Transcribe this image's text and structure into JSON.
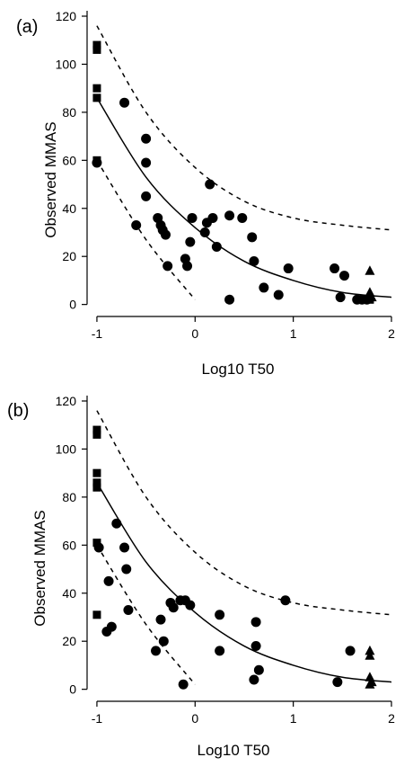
{
  "chart_data": [
    {
      "type": "scatter",
      "panel_label": "(a)",
      "xlabel": "Log10 T50",
      "ylabel": "Observed MMAS",
      "xlim": [
        -1.1,
        2.0
      ],
      "ylim": [
        -5,
        120
      ],
      "xticks": [
        "-1",
        "0",
        "1",
        "2"
      ],
      "yticks": [
        "0",
        "20",
        "40",
        "60",
        "80",
        "100",
        "120"
      ],
      "grid": false,
      "legend": "none",
      "series": [
        {
          "marker": "square",
          "points": [
            [
              -1.0,
              108
            ],
            [
              -1.0,
              106
            ],
            [
              -1.0,
              90
            ],
            [
              -1.0,
              86
            ],
            [
              -1.0,
              60
            ],
            [
              1.78,
              2
            ]
          ]
        },
        {
          "marker": "circle",
          "points": [
            [
              -1.0,
              59
            ],
            [
              -0.72,
              84
            ],
            [
              -0.6,
              33
            ],
            [
              -0.5,
              69
            ],
            [
              -0.5,
              59
            ],
            [
              -0.5,
              45
            ],
            [
              -0.38,
              36
            ],
            [
              -0.35,
              33
            ],
            [
              -0.33,
              31
            ],
            [
              -0.3,
              29
            ],
            [
              -0.28,
              16
            ],
            [
              -0.1,
              19
            ],
            [
              -0.08,
              16
            ],
            [
              -0.05,
              26
            ],
            [
              -0.03,
              36
            ],
            [
              0.1,
              30
            ],
            [
              0.12,
              34
            ],
            [
              0.15,
              50
            ],
            [
              0.18,
              36
            ],
            [
              0.22,
              24
            ],
            [
              0.35,
              37
            ],
            [
              0.35,
              2
            ],
            [
              0.48,
              36
            ],
            [
              0.58,
              28
            ],
            [
              0.6,
              18
            ],
            [
              0.7,
              7
            ],
            [
              0.85,
              4
            ],
            [
              0.95,
              15
            ],
            [
              1.42,
              15
            ],
            [
              1.48,
              3
            ],
            [
              1.52,
              12
            ],
            [
              1.65,
              2
            ],
            [
              1.7,
              2
            ],
            [
              1.75,
              2
            ]
          ]
        },
        {
          "marker": "triangle",
          "points": [
            [
              1.78,
              14
            ],
            [
              1.78,
              5
            ],
            [
              1.8,
              3
            ]
          ]
        }
      ],
      "curves": {
        "fit": {
          "style": "solid",
          "x": [
            -1.0,
            -0.5,
            0.0,
            0.5,
            1.0,
            1.5,
            2.0
          ],
          "y": [
            86,
            53,
            32,
            18,
            10,
            5,
            3
          ]
        },
        "upper": {
          "style": "dashed",
          "x": [
            -1.0,
            -0.5,
            0.0,
            0.5,
            1.0,
            1.5,
            2.0
          ],
          "y": [
            116,
            80,
            57,
            43,
            36,
            33,
            31
          ]
        },
        "lower": {
          "style": "dashed",
          "x": [
            -1.0,
            -0.5,
            0.0
          ],
          "y": [
            60,
            27,
            2
          ]
        }
      }
    },
    {
      "type": "scatter",
      "panel_label": "(b)",
      "xlabel": "Log10 T50",
      "ylabel": "Observed MMAS",
      "xlim": [
        -1.1,
        2.0
      ],
      "ylim": [
        -5,
        120
      ],
      "xticks": [
        "-1",
        "0",
        "1",
        "2"
      ],
      "yticks": [
        "0",
        "20",
        "40",
        "60",
        "80",
        "100",
        "120"
      ],
      "grid": false,
      "legend": "none",
      "series": [
        {
          "marker": "square",
          "points": [
            [
              -1.0,
              108
            ],
            [
              -1.0,
              106
            ],
            [
              -1.0,
              90
            ],
            [
              -1.0,
              86
            ],
            [
              -1.0,
              84
            ],
            [
              -1.0,
              61
            ],
            [
              -1.0,
              31
            ]
          ]
        },
        {
          "marker": "circle",
          "points": [
            [
              -0.98,
              59
            ],
            [
              -0.9,
              24
            ],
            [
              -0.88,
              45
            ],
            [
              -0.85,
              26
            ],
            [
              -0.8,
              69
            ],
            [
              -0.72,
              59
            ],
            [
              -0.7,
              50
            ],
            [
              -0.68,
              33
            ],
            [
              -0.4,
              16
            ],
            [
              -0.35,
              29
            ],
            [
              -0.32,
              20
            ],
            [
              -0.25,
              36
            ],
            [
              -0.22,
              34
            ],
            [
              -0.15,
              37
            ],
            [
              -0.12,
              2
            ],
            [
              -0.1,
              37
            ],
            [
              -0.05,
              35
            ],
            [
              0.25,
              31
            ],
            [
              0.25,
              16
            ],
            [
              0.6,
              4
            ],
            [
              0.62,
              18
            ],
            [
              0.62,
              28
            ],
            [
              0.65,
              8
            ],
            [
              0.92,
              37
            ],
            [
              1.45,
              3
            ],
            [
              1.58,
              16
            ]
          ]
        },
        {
          "marker": "triangle",
          "points": [
            [
              1.78,
              16
            ],
            [
              1.78,
              14
            ],
            [
              1.78,
              5
            ],
            [
              1.8,
              3
            ],
            [
              1.78,
              2
            ]
          ]
        }
      ],
      "curves": {
        "fit": {
          "style": "solid",
          "x": [
            -1.0,
            -0.5,
            0.0,
            0.5,
            1.0,
            1.5,
            2.0
          ],
          "y": [
            86,
            53,
            32,
            18,
            10,
            5,
            3
          ]
        },
        "upper": {
          "style": "dashed",
          "x": [
            -1.0,
            -0.5,
            0.0,
            0.5,
            1.0,
            1.5,
            2.0
          ],
          "y": [
            116,
            80,
            57,
            43,
            36,
            33,
            31
          ]
        },
        "lower": {
          "style": "dashed",
          "x": [
            -1.0,
            -0.5,
            0.0
          ],
          "y": [
            60,
            27,
            2
          ]
        }
      }
    }
  ]
}
